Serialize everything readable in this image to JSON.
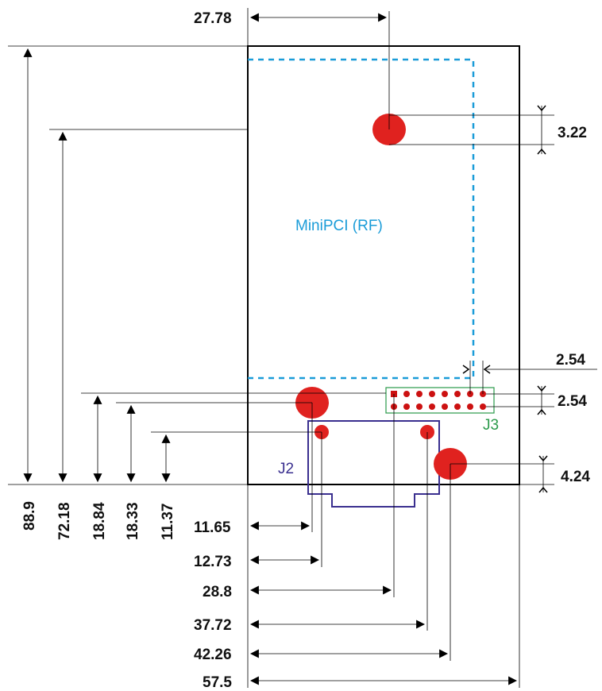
{
  "labels": {
    "minipci": "MiniPCI (RF)",
    "j2": "J2",
    "j3": "J3"
  },
  "dimensions": {
    "top_width": "27.78",
    "right_hole_pitch": "3.22",
    "j3_pitch_h": "2.54",
    "j3_pitch_v": "2.54",
    "right_bottom_hole": "4.24",
    "v_88_9": "88.9",
    "v_72_18": "72.18",
    "v_18_84": "18.84",
    "v_18_33": "18.33",
    "v_11_37": "11.37",
    "h_11_65": "11.65",
    "h_12_73": "12.73",
    "h_28_8": "28.8",
    "h_37_72": "37.72",
    "h_42_26": "42.26",
    "h_57_5": "57.5"
  },
  "colors": {
    "outline": "#000000",
    "hole": "#e0221f",
    "minipci": "#1a9cd8",
    "j2": "#3a2f8f",
    "j3": "#2a9a4a",
    "pin": "#cc1111"
  }
}
